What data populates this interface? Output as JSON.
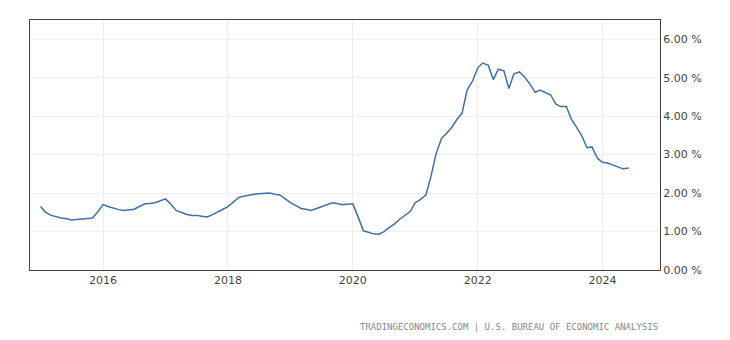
{
  "chart_data": {
    "type": "line",
    "annotations": [
      "TRADINGECONOMICS.COM | U.S. BUREAU OF ECONOMIC ANALYSIS"
    ],
    "color": "#4070a8",
    "grid": true,
    "xlim": [
      2014.83,
      2024.92
    ],
    "xticks": [
      2016,
      2018,
      2020,
      2022,
      2024
    ],
    "ylim": [
      0.0,
      6.5
    ],
    "yticks": [
      {
        "value": 0.0,
        "label": "0.00 %"
      },
      {
        "value": 1.0,
        "label": "1.00 %"
      },
      {
        "value": 2.0,
        "label": "2.00 %"
      },
      {
        "value": 3.0,
        "label": "3.00 %"
      },
      {
        "value": 4.0,
        "label": "4.00 %"
      },
      {
        "value": 5.0,
        "label": "5.00 %"
      },
      {
        "value": 6.0,
        "label": "6.00 %"
      }
    ],
    "x": [
      2015.0,
      2015.08,
      2015.17,
      2015.25,
      2015.33,
      2015.42,
      2015.5,
      2015.58,
      2015.67,
      2015.75,
      2015.83,
      2015.92,
      2016.0,
      2016.08,
      2016.17,
      2016.25,
      2016.33,
      2016.42,
      2016.5,
      2016.58,
      2016.67,
      2016.75,
      2016.83,
      2016.92,
      2017.0,
      2017.08,
      2017.17,
      2017.25,
      2017.33,
      2017.42,
      2017.5,
      2017.58,
      2017.67,
      2017.75,
      2017.83,
      2017.92,
      2018.0,
      2018.08,
      2018.17,
      2018.25,
      2018.33,
      2018.42,
      2018.5,
      2018.58,
      2018.67,
      2018.75,
      2018.83,
      2018.92,
      2019.0,
      2019.08,
      2019.17,
      2019.25,
      2019.33,
      2019.42,
      2019.5,
      2019.58,
      2019.67,
      2019.75,
      2019.83,
      2019.92,
      2020.0,
      2020.08,
      2020.17,
      2020.25,
      2020.33,
      2020.42,
      2020.5,
      2020.58,
      2020.67,
      2020.75,
      2020.83,
      2020.92,
      2021.0,
      2021.08,
      2021.17,
      2021.25,
      2021.33,
      2021.42,
      2021.5,
      2021.58,
      2021.67,
      2021.75,
      2021.83,
      2021.92,
      2022.0,
      2022.08,
      2022.17,
      2022.25,
      2022.33,
      2022.42,
      2022.5,
      2022.58,
      2022.67,
      2022.75,
      2022.83,
      2022.92,
      2023.0,
      2023.08,
      2023.17,
      2023.25,
      2023.33,
      2023.42,
      2023.5,
      2023.58,
      2023.67,
      2023.75,
      2023.83,
      2023.92,
      2024.0,
      2024.08,
      2024.17,
      2024.25,
      2024.33,
      2024.42
    ],
    "values": [
      1.65,
      1.5,
      1.42,
      1.38,
      1.35,
      1.33,
      1.3,
      1.31,
      1.32,
      1.33,
      1.35,
      1.52,
      1.7,
      1.65,
      1.6,
      1.57,
      1.55,
      1.56,
      1.58,
      1.65,
      1.72,
      1.73,
      1.75,
      1.8,
      1.85,
      1.72,
      1.55,
      1.5,
      1.45,
      1.42,
      1.42,
      1.4,
      1.38,
      1.44,
      1.5,
      1.58,
      1.65,
      1.77,
      1.88,
      1.92,
      1.95,
      1.97,
      1.98,
      1.99,
      2.0,
      1.97,
      1.95,
      1.85,
      1.75,
      1.68,
      1.6,
      1.58,
      1.55,
      1.6,
      1.65,
      1.7,
      1.75,
      1.73,
      1.7,
      1.71,
      1.72,
      1.4,
      1.02,
      0.98,
      0.94,
      0.93,
      1.0,
      1.1,
      1.2,
      1.32,
      1.42,
      1.52,
      1.75,
      1.83,
      1.95,
      2.42,
      3.0,
      3.42,
      3.55,
      3.7,
      3.92,
      4.08,
      4.68,
      4.92,
      5.25,
      5.38,
      5.32,
      4.95,
      5.22,
      5.18,
      4.72,
      5.1,
      5.15,
      5.02,
      4.85,
      4.62,
      4.68,
      4.62,
      4.55,
      4.32,
      4.25,
      4.25,
      3.92,
      3.72,
      3.48,
      3.18,
      3.2,
      2.9,
      2.8,
      2.78,
      2.72,
      2.68,
      2.63,
      2.65
    ]
  }
}
